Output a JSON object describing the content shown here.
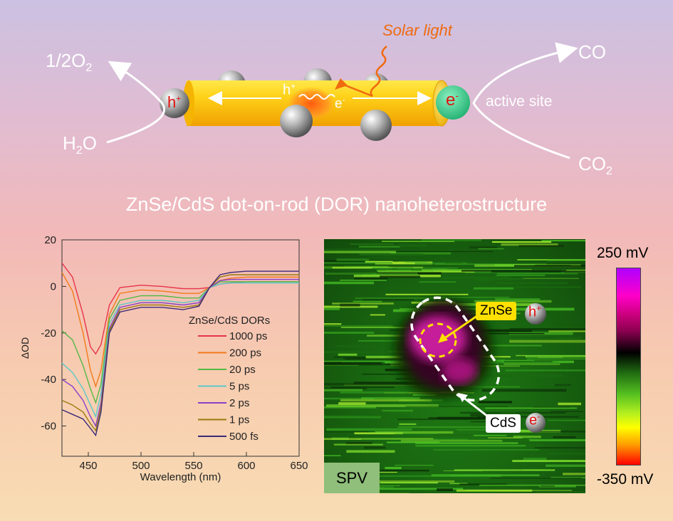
{
  "illustration": {
    "solar_light_label": "Solar light",
    "o2_label": "1/2O",
    "o2_sub": "2",
    "h2o_label": "H",
    "h2o_sub": "2",
    "h2o_tail": "O",
    "co_label": "CO",
    "co2_label": "CO",
    "co2_sub": "2",
    "active_site_label": "active site",
    "hole_symbol": "h",
    "hole_sup": "+",
    "electron_symbol": "e",
    "electron_sup": "-",
    "solar_color": "#f06a10"
  },
  "subtitle": "ZnSe/CdS dot-on-rod (DOR) nanoheterostructure",
  "spv": {
    "badge": "SPV",
    "znse_label": "ZnSe",
    "cds_label": "CdS",
    "hole_symbol": "h",
    "hole_sup": "+",
    "electron_symbol": "e",
    "electron_sup": "-",
    "colorbar_max": "250 mV",
    "colorbar_min": "-350 mV"
  },
  "chart_data": {
    "type": "line",
    "xlabel": "Wavelength (nm)",
    "ylabel": "ΔOD",
    "xlim": [
      425,
      650
    ],
    "ylim": [
      -73,
      20
    ],
    "xticks": [
      450,
      500,
      550,
      600,
      650
    ],
    "yticks": [
      20,
      0,
      -20,
      -40,
      -60
    ],
    "legend_title": "ZnSe/CdS DORs",
    "legend_position": "center-right",
    "x": [
      425,
      435,
      445,
      452,
      457,
      462,
      470,
      480,
      500,
      520,
      540,
      555,
      565,
      575,
      585,
      600,
      620,
      650
    ],
    "series": [
      {
        "name": "1000 ps",
        "color": "#e8334a",
        "values": [
          10,
          4,
          -12,
          -26,
          -29,
          -25,
          -8,
          -0.5,
          0.5,
          0,
          -1,
          -1,
          -0.5,
          1,
          1.5,
          2,
          2,
          2
        ]
      },
      {
        "name": "200 ps",
        "color": "#f07a1a",
        "values": [
          6,
          -2,
          -20,
          -36,
          -43,
          -36,
          -12,
          -3,
          -1.5,
          -2,
          -3,
          -3,
          -0.5,
          2.5,
          3.5,
          4,
          4,
          4
        ]
      },
      {
        "name": "20 ps",
        "color": "#55b847",
        "values": [
          -19,
          -23,
          -34,
          -44,
          -50,
          -42,
          -14,
          -6,
          -4,
          -4,
          -5,
          -5,
          -0.5,
          2,
          2,
          2,
          2,
          2
        ]
      },
      {
        "name": "5 ps",
        "color": "#5cc8c8",
        "values": [
          -33,
          -37,
          -44,
          -51,
          -56,
          -46,
          -16,
          -8,
          -6,
          -6,
          -7,
          -6,
          -0.5,
          1,
          1.5,
          1.5,
          1.5,
          1.5
        ]
      },
      {
        "name": "2 ps",
        "color": "#8a3fc8",
        "values": [
          -40,
          -43,
          -49,
          -56,
          -60,
          -50,
          -18,
          -9,
          -7,
          -7,
          -8,
          -7,
          -0.5,
          2.5,
          3,
          3,
          3,
          3
        ]
      },
      {
        "name": "1 ps",
        "color": "#9a7a10",
        "values": [
          -49,
          -51,
          -54,
          -59,
          -62,
          -52,
          -19,
          -10,
          -8,
          -8,
          -9,
          -8,
          -0.5,
          4,
          5,
          5,
          5,
          5
        ]
      },
      {
        "name": "500 fs",
        "color": "#3a2a78",
        "values": [
          -53,
          -55,
          -57,
          -61,
          -64,
          -54,
          -20,
          -11,
          -9,
          -9,
          -10,
          -8.5,
          -0.5,
          5,
          6,
          6.5,
          6.5,
          6.5
        ]
      }
    ]
  }
}
